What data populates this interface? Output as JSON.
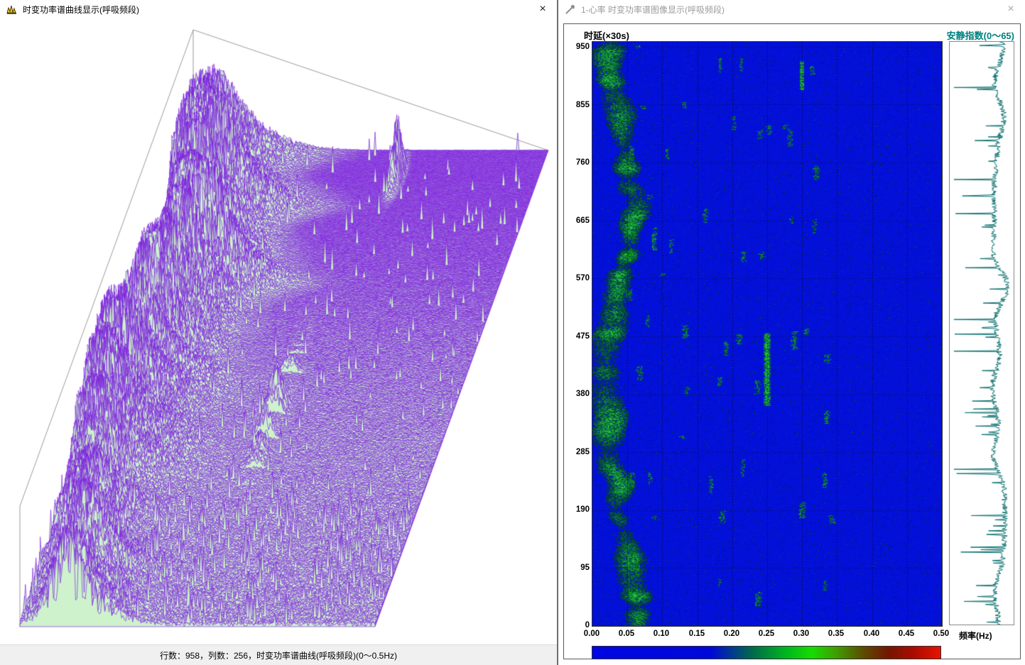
{
  "left_window": {
    "title": "时变功率谱曲线显示(呼吸频段)",
    "close_label": "×",
    "status_text": "行数：958，列数：256，时变功率谱曲线(呼吸频段)(0～0.5Hz)"
  },
  "right_window": {
    "title": "1-心率 时变功率谱图像显示(呼吸频段)",
    "close_label": "×",
    "y_axis_title": "时延(×30s)",
    "quiet_index_title": "安静指数(0～65)",
    "x_axis_title": "频率(Hz)",
    "y_ticks": [
      "950",
      "855",
      "760",
      "665",
      "570",
      "475",
      "380",
      "285",
      "190",
      "95",
      "0"
    ],
    "x_ticks": [
      "0.00",
      "0.05",
      "0.10",
      "0.15",
      "0.20",
      "0.25",
      "0.30",
      "0.35",
      "0.40",
      "0.45",
      "0.50"
    ]
  },
  "colors": {
    "waterfall_line": "#7a1ade",
    "waterfall_fill": "#cdf2cc",
    "spectro_base": "#0310d8",
    "quiet_line": "#0a6e6e",
    "quiet_title": "#008080"
  },
  "chart_data": [
    {
      "id": "waterfall_3d",
      "type": "area",
      "title": "时变功率谱曲线(呼吸频段)",
      "rows": 958,
      "cols": 256,
      "x_range_hz": [
        0,
        0.5
      ],
      "description": "3D waterfall of 958 successive power spectra (respiratory band); dominant low-frequency ridge with scattered bursts",
      "bands": [
        {
          "name": "respiratory-band",
          "center_hz": 0.045,
          "width_hz": 0.035,
          "row_span": [
            0,
            958
          ],
          "relative_peak": 1.0
        },
        {
          "name": "mid-band-burst",
          "center_hz": 0.25,
          "width_hz": 0.012,
          "row_span": [
            360,
            480
          ],
          "relative_peak": 0.6
        },
        {
          "name": "isolated-spike",
          "center_hz": 0.3,
          "width_hz": 0.006,
          "row_span": [
            878,
            926
          ],
          "relative_peak": 0.62
        }
      ]
    },
    {
      "id": "spectrogram",
      "type": "heatmap",
      "xlabel": "频率(Hz)",
      "ylabel": "时延(×30s)",
      "x_range": [
        0,
        0.5
      ],
      "y_range": [
        0,
        958
      ],
      "x_ticks": [
        0.0,
        0.05,
        0.1,
        0.15,
        0.2,
        0.25,
        0.3,
        0.35,
        0.4,
        0.45,
        0.5
      ],
      "y_ticks": [
        0,
        95,
        190,
        285,
        380,
        475,
        570,
        665,
        760,
        855,
        950
      ],
      "grid": true,
      "colormap": "blue-green-red",
      "bands": [
        {
          "name": "respiratory-band",
          "center_hz": 0.045,
          "width_hz": 0.035,
          "row_span": [
            0,
            958
          ],
          "relative_peak": 1.0
        },
        {
          "name": "mid-band-burst",
          "center_hz": 0.25,
          "width_hz": 0.012,
          "row_span": [
            360,
            480
          ],
          "relative_peak": 0.6
        },
        {
          "name": "isolated-spike",
          "center_hz": 0.3,
          "width_hz": 0.006,
          "row_span": [
            878,
            926
          ],
          "relative_peak": 0.62
        }
      ]
    },
    {
      "id": "quiet_index",
      "type": "line",
      "title": "安静指数(0～65)",
      "value_range": [
        0,
        65
      ],
      "points": 958,
      "baseline": 52,
      "color": "#0a6e6e"
    }
  ]
}
